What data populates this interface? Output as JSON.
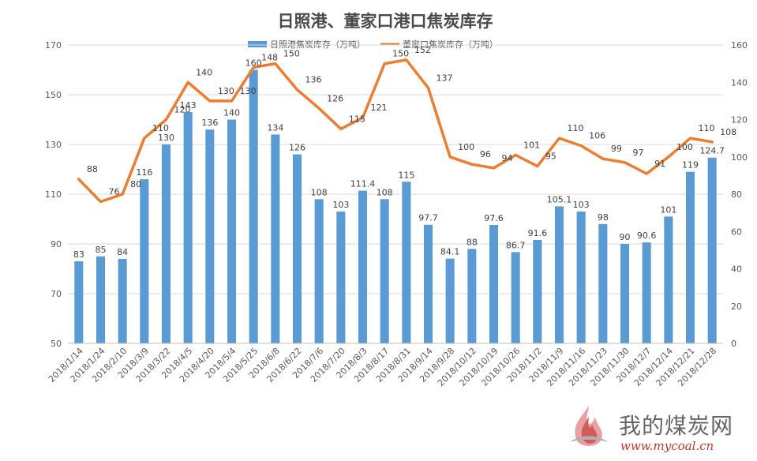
{
  "chart_data": {
    "type": "bar+line",
    "title": "日照港、董家口港口焦炭库存",
    "categories": [
      "2018/1/14",
      "2018/1/24",
      "2018/2/10",
      "2018/3/9",
      "2018/3/22",
      "2018/4/5",
      "2018/4/20",
      "2018/5/4",
      "2018/5/25",
      "2018/6/8",
      "2018/6/22",
      "2018/7/6",
      "2018/7/20",
      "2018/8/3",
      "2018/8/17",
      "2018/8/31",
      "2018/9/14",
      "2018/9/28",
      "2018/10/12",
      "2018/10/19",
      "2018/10/26",
      "2018/11/2",
      "2018/11/9",
      "2018/11/16",
      "2018/11/23",
      "2018/11/30",
      "2018/12/7",
      "2018/12/14",
      "2018/12/21",
      "2018/12/28"
    ],
    "series": [
      {
        "name": "日照港焦炭库存（万吨）",
        "type": "bar",
        "axis": "left",
        "color": "#5b9bd5",
        "values": [
          83,
          85,
          84,
          116,
          130,
          143,
          136,
          140,
          160,
          134,
          126,
          108,
          103,
          111.4,
          108,
          115,
          97.7,
          84.1,
          88,
          97.6,
          86.7,
          91.6,
          105.1,
          103,
          98,
          90,
          90.6,
          101,
          119,
          124.7
        ],
        "labels": [
          "83",
          "85",
          "84",
          "116",
          "130",
          "143",
          "136",
          "140",
          "160",
          "134",
          "126",
          "108",
          "103",
          "111.4",
          "108",
          "115",
          "97.7",
          "84.1",
          "88",
          "97.6",
          "86.7",
          "91.6",
          "105.1",
          "103",
          "98",
          "90",
          "90.6",
          "101",
          "119",
          "124.7"
        ]
      },
      {
        "name": "董家口焦炭库存（万吨）",
        "type": "line",
        "axis": "right",
        "color": "#ed7d31",
        "values": [
          88,
          76,
          80,
          110,
          120,
          140,
          130,
          130,
          148,
          150,
          136,
          126,
          115,
          121,
          150,
          152,
          137,
          100,
          96,
          94,
          101,
          95,
          110,
          106,
          99,
          97,
          91,
          100,
          110,
          108
        ],
        "labels": [
          "88",
          "76",
          "80",
          "110",
          "120",
          "140",
          "130",
          "130",
          "148",
          "150",
          "136",
          "126",
          "115",
          "121",
          "150",
          "152",
          "137",
          "100",
          "96",
          "94",
          "101",
          "95",
          "110",
          "106",
          "99",
          "97",
          "91",
          "100",
          "110",
          "108"
        ]
      }
    ],
    "y_left": {
      "min": 50,
      "max": 170,
      "ticks": [
        "50",
        "70",
        "90",
        "110",
        "130",
        "150",
        "170"
      ]
    },
    "y_right": {
      "min": 0,
      "max": 160,
      "ticks": [
        "0",
        "20",
        "40",
        "60",
        "80",
        "100",
        "120",
        "140",
        "160"
      ]
    },
    "legend_position": "top",
    "grid": true
  },
  "watermark": {
    "text": "我的煤炭网",
    "url": "www.mycoal.cn"
  }
}
